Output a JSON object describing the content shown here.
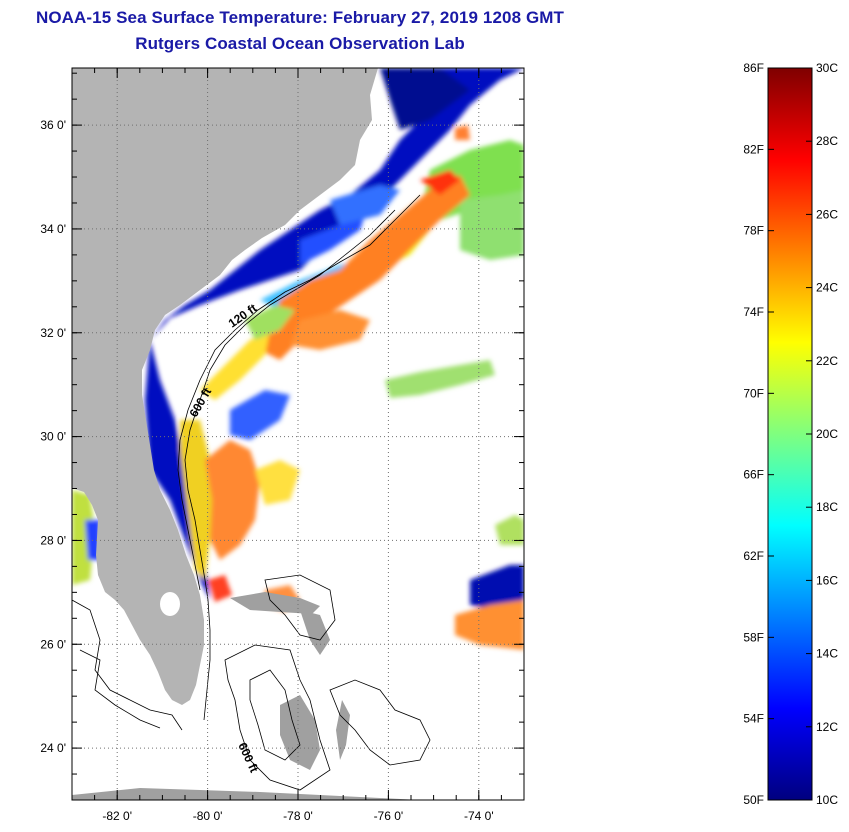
{
  "header": {
    "title": "NOAA-15 Sea Surface Temperature:  February 27, 2019 1208 GMT",
    "subtitle": "Rutgers Coastal Ocean Observation Lab"
  },
  "map": {
    "lat_labels": [
      {
        "lat": 36,
        "label": "36 0'"
      },
      {
        "lat": 34,
        "label": "34 0'"
      },
      {
        "lat": 32,
        "label": "32 0'"
      },
      {
        "lat": 30,
        "label": "30 0'"
      },
      {
        "lat": 28,
        "label": "28 0'"
      },
      {
        "lat": 26,
        "label": "26 0'"
      },
      {
        "lat": 24,
        "label": "24 0'"
      }
    ],
    "lon_labels": [
      {
        "lon": -82,
        "label": "-82 0'"
      },
      {
        "lon": -80,
        "label": "-80 0'"
      },
      {
        "lon": -78,
        "label": "-78 0'"
      },
      {
        "lon": -76,
        "label": "-76 0'"
      },
      {
        "lon": -74,
        "label": "-74 0'"
      }
    ],
    "lat_range": [
      23,
      37.1
    ],
    "lon_range": [
      -83,
      -73
    ],
    "grid": "dotted",
    "isobath_labels": [
      "120 ft",
      "600 ft",
      "600 ft"
    ],
    "colors": {
      "land": "#b4b4b4",
      "no_data": "#ffffff",
      "frame": "#000000"
    }
  },
  "colorbar": {
    "min_c": 10,
    "max_c": 30,
    "f_labels": [
      "86F",
      "82F",
      "78F",
      "74F",
      "70F",
      "66F",
      "62F",
      "58F",
      "54F",
      "50F"
    ],
    "c_labels": [
      "30C",
      "28C",
      "26C",
      "24C",
      "22C",
      "20C",
      "18C",
      "16C",
      "14C",
      "12C",
      "10C"
    ],
    "stops": [
      "#00007f",
      "#0000ff",
      "#007fff",
      "#00ffff",
      "#7fff7f",
      "#ffff00",
      "#ff7f00",
      "#ff0000",
      "#7f0000"
    ]
  }
}
